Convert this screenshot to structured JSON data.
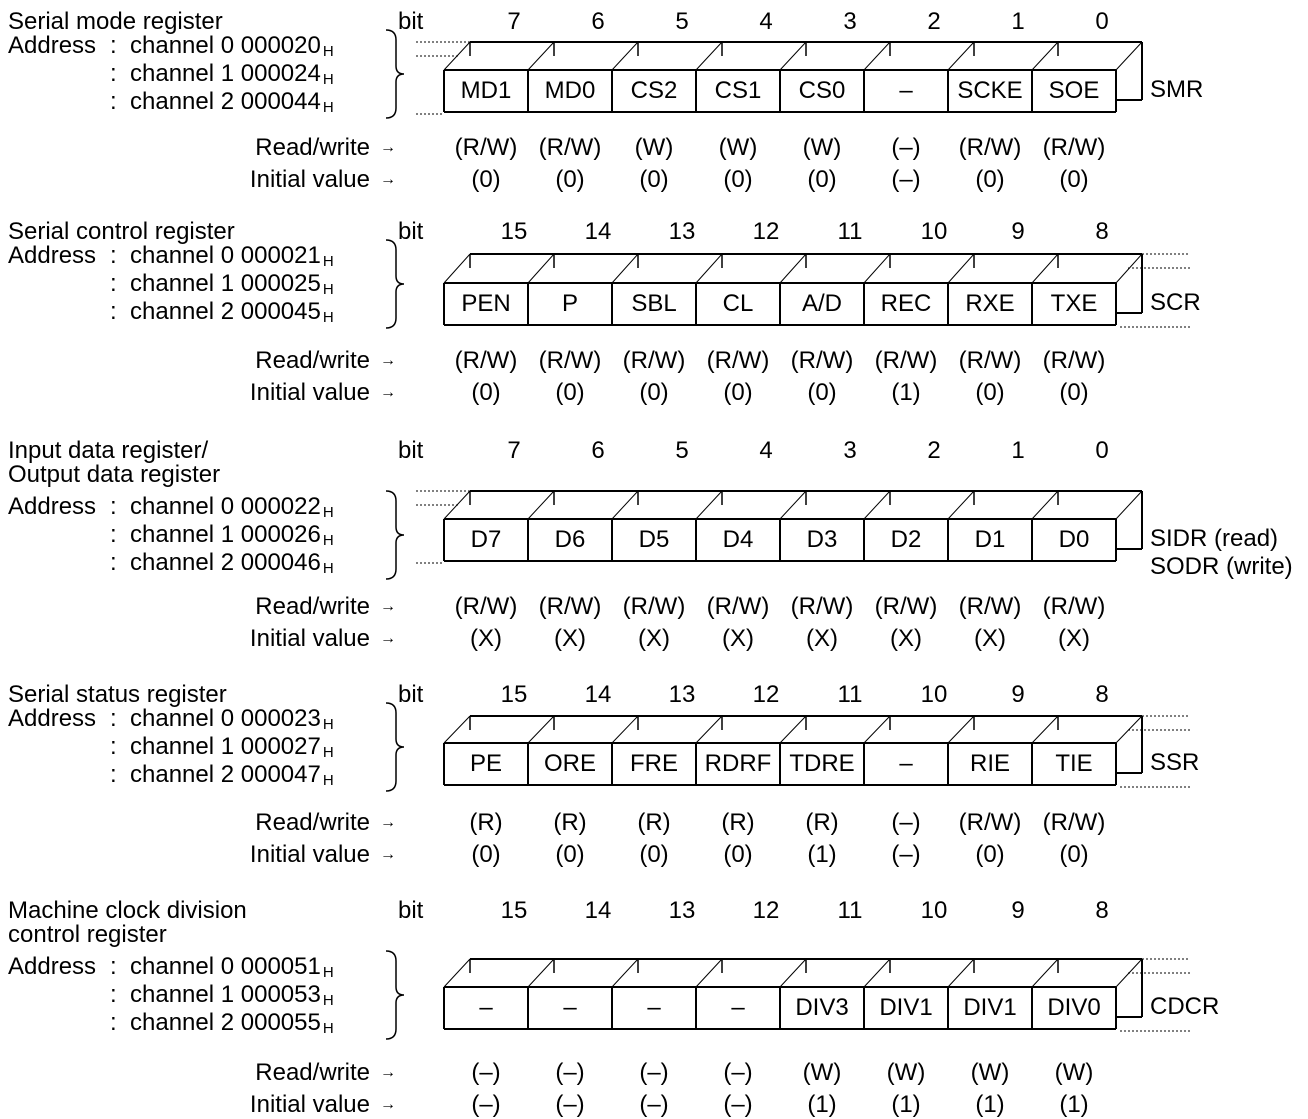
{
  "labels": {
    "bit": "bit",
    "address": "Address",
    "read_write": "Read/write",
    "initial_value": "Initial value",
    "arrow": "→",
    "hex_suffix": "H"
  },
  "registers": [
    {
      "title": [
        "Serial mode register"
      ],
      "addresses": [
        {
          "prefix": "Address",
          "text": "channel 0 000020"
        },
        {
          "prefix": "",
          "text": "channel 1 000024"
        },
        {
          "prefix": "",
          "text": "channel 2 000044"
        }
      ],
      "bits": [
        "7",
        "6",
        "5",
        "4",
        "3",
        "2",
        "1",
        "0"
      ],
      "fields": [
        "MD1",
        "MD0",
        "CS2",
        "CS1",
        "CS0",
        "–",
        "SCKE",
        "SOE"
      ],
      "rw": [
        "(R/W)",
        "(R/W)",
        "(W)",
        "(W)",
        "(W)",
        "(–)",
        "(R/W)",
        "(R/W)"
      ],
      "init": [
        "(0)",
        "(0)",
        "(0)",
        "(0)",
        "(0)",
        "(–)",
        "(0)",
        "(0)"
      ],
      "name": [
        "SMR"
      ],
      "upper": true
    },
    {
      "title": [
        "Serial control register"
      ],
      "addresses": [
        {
          "prefix": "Address",
          "text": "channel 0 000021"
        },
        {
          "prefix": "",
          "text": "channel 1 000025"
        },
        {
          "prefix": "",
          "text": "channel 2 000045"
        }
      ],
      "bits": [
        "15",
        "14",
        "13",
        "12",
        "11",
        "10",
        "9",
        "8"
      ],
      "fields": [
        "PEN",
        "P",
        "SBL",
        "CL",
        "A/D",
        "REC",
        "RXE",
        "TXE"
      ],
      "rw": [
        "(R/W)",
        "(R/W)",
        "(R/W)",
        "(R/W)",
        "(R/W)",
        "(R/W)",
        "(R/W)",
        "(R/W)"
      ],
      "init": [
        "(0)",
        "(0)",
        "(0)",
        "(0)",
        "(0)",
        "(1)",
        "(0)",
        "(0)"
      ],
      "name": [
        "SCR"
      ],
      "upper": false
    },
    {
      "title": [
        "Input data register/",
        "Output data register"
      ],
      "addresses": [
        {
          "prefix": "Address",
          "text": "channel 0 000022"
        },
        {
          "prefix": "",
          "text": "channel 1 000026"
        },
        {
          "prefix": "",
          "text": "channel 2 000046"
        }
      ],
      "bits": [
        "7",
        "6",
        "5",
        "4",
        "3",
        "2",
        "1",
        "0"
      ],
      "fields": [
        "D7",
        "D6",
        "D5",
        "D4",
        "D3",
        "D2",
        "D1",
        "D0"
      ],
      "rw": [
        "(R/W)",
        "(R/W)",
        "(R/W)",
        "(R/W)",
        "(R/W)",
        "(R/W)",
        "(R/W)",
        "(R/W)"
      ],
      "init": [
        "(X)",
        "(X)",
        "(X)",
        "(X)",
        "(X)",
        "(X)",
        "(X)",
        "(X)"
      ],
      "name": [
        "SIDR (read)",
        "SODR (write)"
      ],
      "upper": true
    },
    {
      "title": [
        "Serial status register"
      ],
      "addresses": [
        {
          "prefix": "Address",
          "text": "channel 0 000023"
        },
        {
          "prefix": "",
          "text": "channel 1 000027"
        },
        {
          "prefix": "",
          "text": "channel 2 000047"
        }
      ],
      "bits": [
        "15",
        "14",
        "13",
        "12",
        "11",
        "10",
        "9",
        "8"
      ],
      "fields": [
        "PE",
        "ORE",
        "FRE",
        "RDRF",
        "TDRE",
        "–",
        "RIE",
        "TIE"
      ],
      "rw": [
        "(R)",
        "(R)",
        "(R)",
        "(R)",
        "(R)",
        "(–)",
        "(R/W)",
        "(R/W)"
      ],
      "init": [
        "(0)",
        "(0)",
        "(0)",
        "(0)",
        "(1)",
        "(–)",
        "(0)",
        "(0)"
      ],
      "name": [
        "SSR"
      ],
      "upper": false
    },
    {
      "title": [
        "Machine clock division",
        "control register"
      ],
      "addresses": [
        {
          "prefix": "Address",
          "text": "channel 0 000051"
        },
        {
          "prefix": "",
          "text": "channel 1 000053"
        },
        {
          "prefix": "",
          "text": "channel 2 000055"
        }
      ],
      "bits": [
        "15",
        "14",
        "13",
        "12",
        "11",
        "10",
        "9",
        "8"
      ],
      "fields": [
        "–",
        "–",
        "–",
        "–",
        "DIV3",
        "DIV1",
        "DIV1",
        "DIV0"
      ],
      "rw": [
        "(–)",
        "(–)",
        "(–)",
        "(–)",
        "(W)",
        "(W)",
        "(W)",
        "(W)"
      ],
      "init": [
        "(–)",
        "(–)",
        "(–)",
        "(–)",
        "(1)",
        "(1)",
        "(1)",
        "(1)"
      ],
      "name": [
        "CDCR"
      ],
      "upper": false
    }
  ]
}
